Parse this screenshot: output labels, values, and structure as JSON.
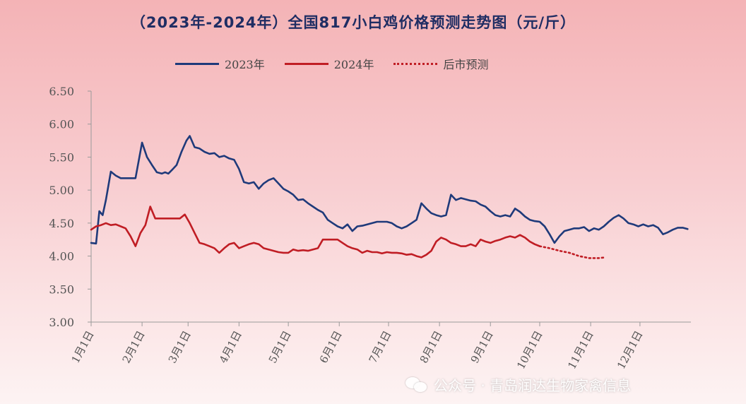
{
  "chart_data": {
    "type": "line",
    "title": "（2023年-2024年）全国817小白鸡价格预测走势图（元/斤）",
    "xlabel": "",
    "ylabel": "",
    "ylim": [
      3.0,
      6.5
    ],
    "yticks": [
      "3.00",
      "3.50",
      "4.00",
      "4.50",
      "5.00",
      "5.50",
      "6.00",
      "6.50"
    ],
    "xlim": [
      1,
      366
    ],
    "xticks": [
      {
        "label": "1月1日",
        "day": 1
      },
      {
        "label": "2月1日",
        "day": 32
      },
      {
        "label": "3月1日",
        "day": 60
      },
      {
        "label": "4月1日",
        "day": 91
      },
      {
        "label": "5月1日",
        "day": 121
      },
      {
        "label": "6月1日",
        "day": 152
      },
      {
        "label": "7月1日",
        "day": 182
      },
      {
        "label": "8月1日",
        "day": 213
      },
      {
        "label": "9月1日",
        "day": 244
      },
      {
        "label": "10月1日",
        "day": 274
      },
      {
        "label": "11月1日",
        "day": 305
      },
      {
        "label": "12月1日",
        "day": 335
      }
    ],
    "legend_position": "top-center",
    "grid": false,
    "series": [
      {
        "name": "2023年",
        "color": "#1f3a7a",
        "style": "solid",
        "x": [
          1,
          4,
          6,
          8,
          10,
          13,
          16,
          19,
          22,
          25,
          28,
          32,
          35,
          38,
          41,
          44,
          46,
          48,
          50,
          53,
          56,
          59,
          61,
          64,
          67,
          70,
          73,
          76,
          79,
          82,
          85,
          88,
          91,
          94,
          97,
          100,
          103,
          106,
          109,
          112,
          115,
          118,
          121,
          124,
          127,
          130,
          133,
          136,
          139,
          142,
          145,
          148,
          151,
          154,
          157,
          160,
          163,
          166,
          169,
          172,
          175,
          178,
          181,
          184,
          187,
          190,
          193,
          196,
          199,
          202,
          205,
          208,
          211,
          214,
          217,
          220,
          223,
          226,
          229,
          232,
          235,
          238,
          241,
          244,
          247,
          250,
          253,
          256,
          259,
          262,
          265,
          268,
          271,
          274,
          277,
          280,
          283,
          286,
          289,
          292,
          295,
          298,
          301,
          304,
          307,
          310,
          313,
          316,
          319,
          322,
          325,
          328,
          331,
          334,
          337,
          340,
          343,
          346,
          349,
          352,
          355,
          358,
          361,
          364
        ],
        "y": [
          4.2,
          4.19,
          4.68,
          4.62,
          4.85,
          5.28,
          5.22,
          5.18,
          5.18,
          5.18,
          5.18,
          5.72,
          5.5,
          5.38,
          5.27,
          5.25,
          5.27,
          5.25,
          5.3,
          5.38,
          5.58,
          5.75,
          5.82,
          5.65,
          5.63,
          5.58,
          5.55,
          5.56,
          5.5,
          5.52,
          5.48,
          5.46,
          5.32,
          5.12,
          5.1,
          5.12,
          5.02,
          5.1,
          5.15,
          5.18,
          5.1,
          5.02,
          4.98,
          4.93,
          4.85,
          4.86,
          4.8,
          4.75,
          4.7,
          4.66,
          4.55,
          4.5,
          4.45,
          4.42,
          4.48,
          4.38,
          4.45,
          4.46,
          4.48,
          4.5,
          4.52,
          4.52,
          4.52,
          4.5,
          4.45,
          4.42,
          4.45,
          4.5,
          4.55,
          4.8,
          4.72,
          4.65,
          4.62,
          4.6,
          4.62,
          4.93,
          4.85,
          4.88,
          4.86,
          4.84,
          4.83,
          4.78,
          4.75,
          4.68,
          4.62,
          4.6,
          4.62,
          4.6,
          4.72,
          4.67,
          4.6,
          4.55,
          4.53,
          4.52,
          4.45,
          4.33,
          4.2,
          4.3,
          4.38,
          4.4,
          4.42,
          4.42,
          4.44,
          4.38,
          4.42,
          4.4,
          4.45,
          4.52,
          4.58,
          4.62,
          4.57,
          4.5,
          4.48,
          4.45,
          4.48,
          4.45,
          4.47,
          4.43,
          4.33,
          4.36,
          4.4,
          4.43,
          4.43,
          4.41
        ]
      },
      {
        "name": "2024年",
        "color": "#c01d24",
        "style": "solid",
        "x": [
          1,
          4,
          7,
          10,
          13,
          16,
          19,
          22,
          25,
          28,
          31,
          34,
          37,
          40,
          43,
          46,
          49,
          52,
          55,
          58,
          61,
          64,
          67,
          70,
          73,
          76,
          79,
          82,
          85,
          88,
          91,
          94,
          97,
          100,
          103,
          106,
          109,
          112,
          115,
          118,
          121,
          124,
          127,
          130,
          133,
          136,
          139,
          142,
          145,
          148,
          151,
          154,
          157,
          160,
          163,
          166,
          169,
          172,
          175,
          178,
          181,
          184,
          187,
          190,
          193,
          196,
          199,
          202,
          205,
          208,
          211,
          214,
          217,
          220,
          223,
          226,
          229,
          232,
          235,
          238,
          241,
          244,
          247,
          250,
          253,
          256,
          259,
          262,
          265,
          268,
          271,
          274
        ],
        "y": [
          4.4,
          4.45,
          4.47,
          4.5,
          4.47,
          4.48,
          4.45,
          4.42,
          4.3,
          4.15,
          4.35,
          4.47,
          4.75,
          4.57,
          4.57,
          4.57,
          4.57,
          4.57,
          4.57,
          4.63,
          4.5,
          4.35,
          4.2,
          4.18,
          4.15,
          4.12,
          4.05,
          4.12,
          4.18,
          4.2,
          4.12,
          4.15,
          4.18,
          4.2,
          4.18,
          4.12,
          4.1,
          4.08,
          4.06,
          4.05,
          4.05,
          4.1,
          4.08,
          4.09,
          4.08,
          4.1,
          4.12,
          4.25,
          4.25,
          4.25,
          4.25,
          4.2,
          4.15,
          4.12,
          4.1,
          4.05,
          4.08,
          4.06,
          4.06,
          4.04,
          4.06,
          4.05,
          4.05,
          4.04,
          4.02,
          4.03,
          4.0,
          3.98,
          4.02,
          4.08,
          4.22,
          4.28,
          4.25,
          4.2,
          4.18,
          4.15,
          4.15,
          4.18,
          4.15,
          4.25,
          4.22,
          4.2,
          4.23,
          4.25,
          4.28,
          4.3,
          4.28,
          4.32,
          4.28,
          4.22,
          4.18,
          4.15
        ]
      },
      {
        "name": "后市预测",
        "color": "#c01d24",
        "style": "dotted",
        "x": [
          274,
          280,
          286,
          292,
          298,
          304,
          310,
          314
        ],
        "y": [
          4.15,
          4.12,
          4.08,
          4.05,
          4.0,
          3.97,
          3.97,
          3.98
        ]
      }
    ]
  },
  "watermark": {
    "text": "公众号 · 青岛润达生物家禽信息",
    "icon": "wechat-icon"
  }
}
